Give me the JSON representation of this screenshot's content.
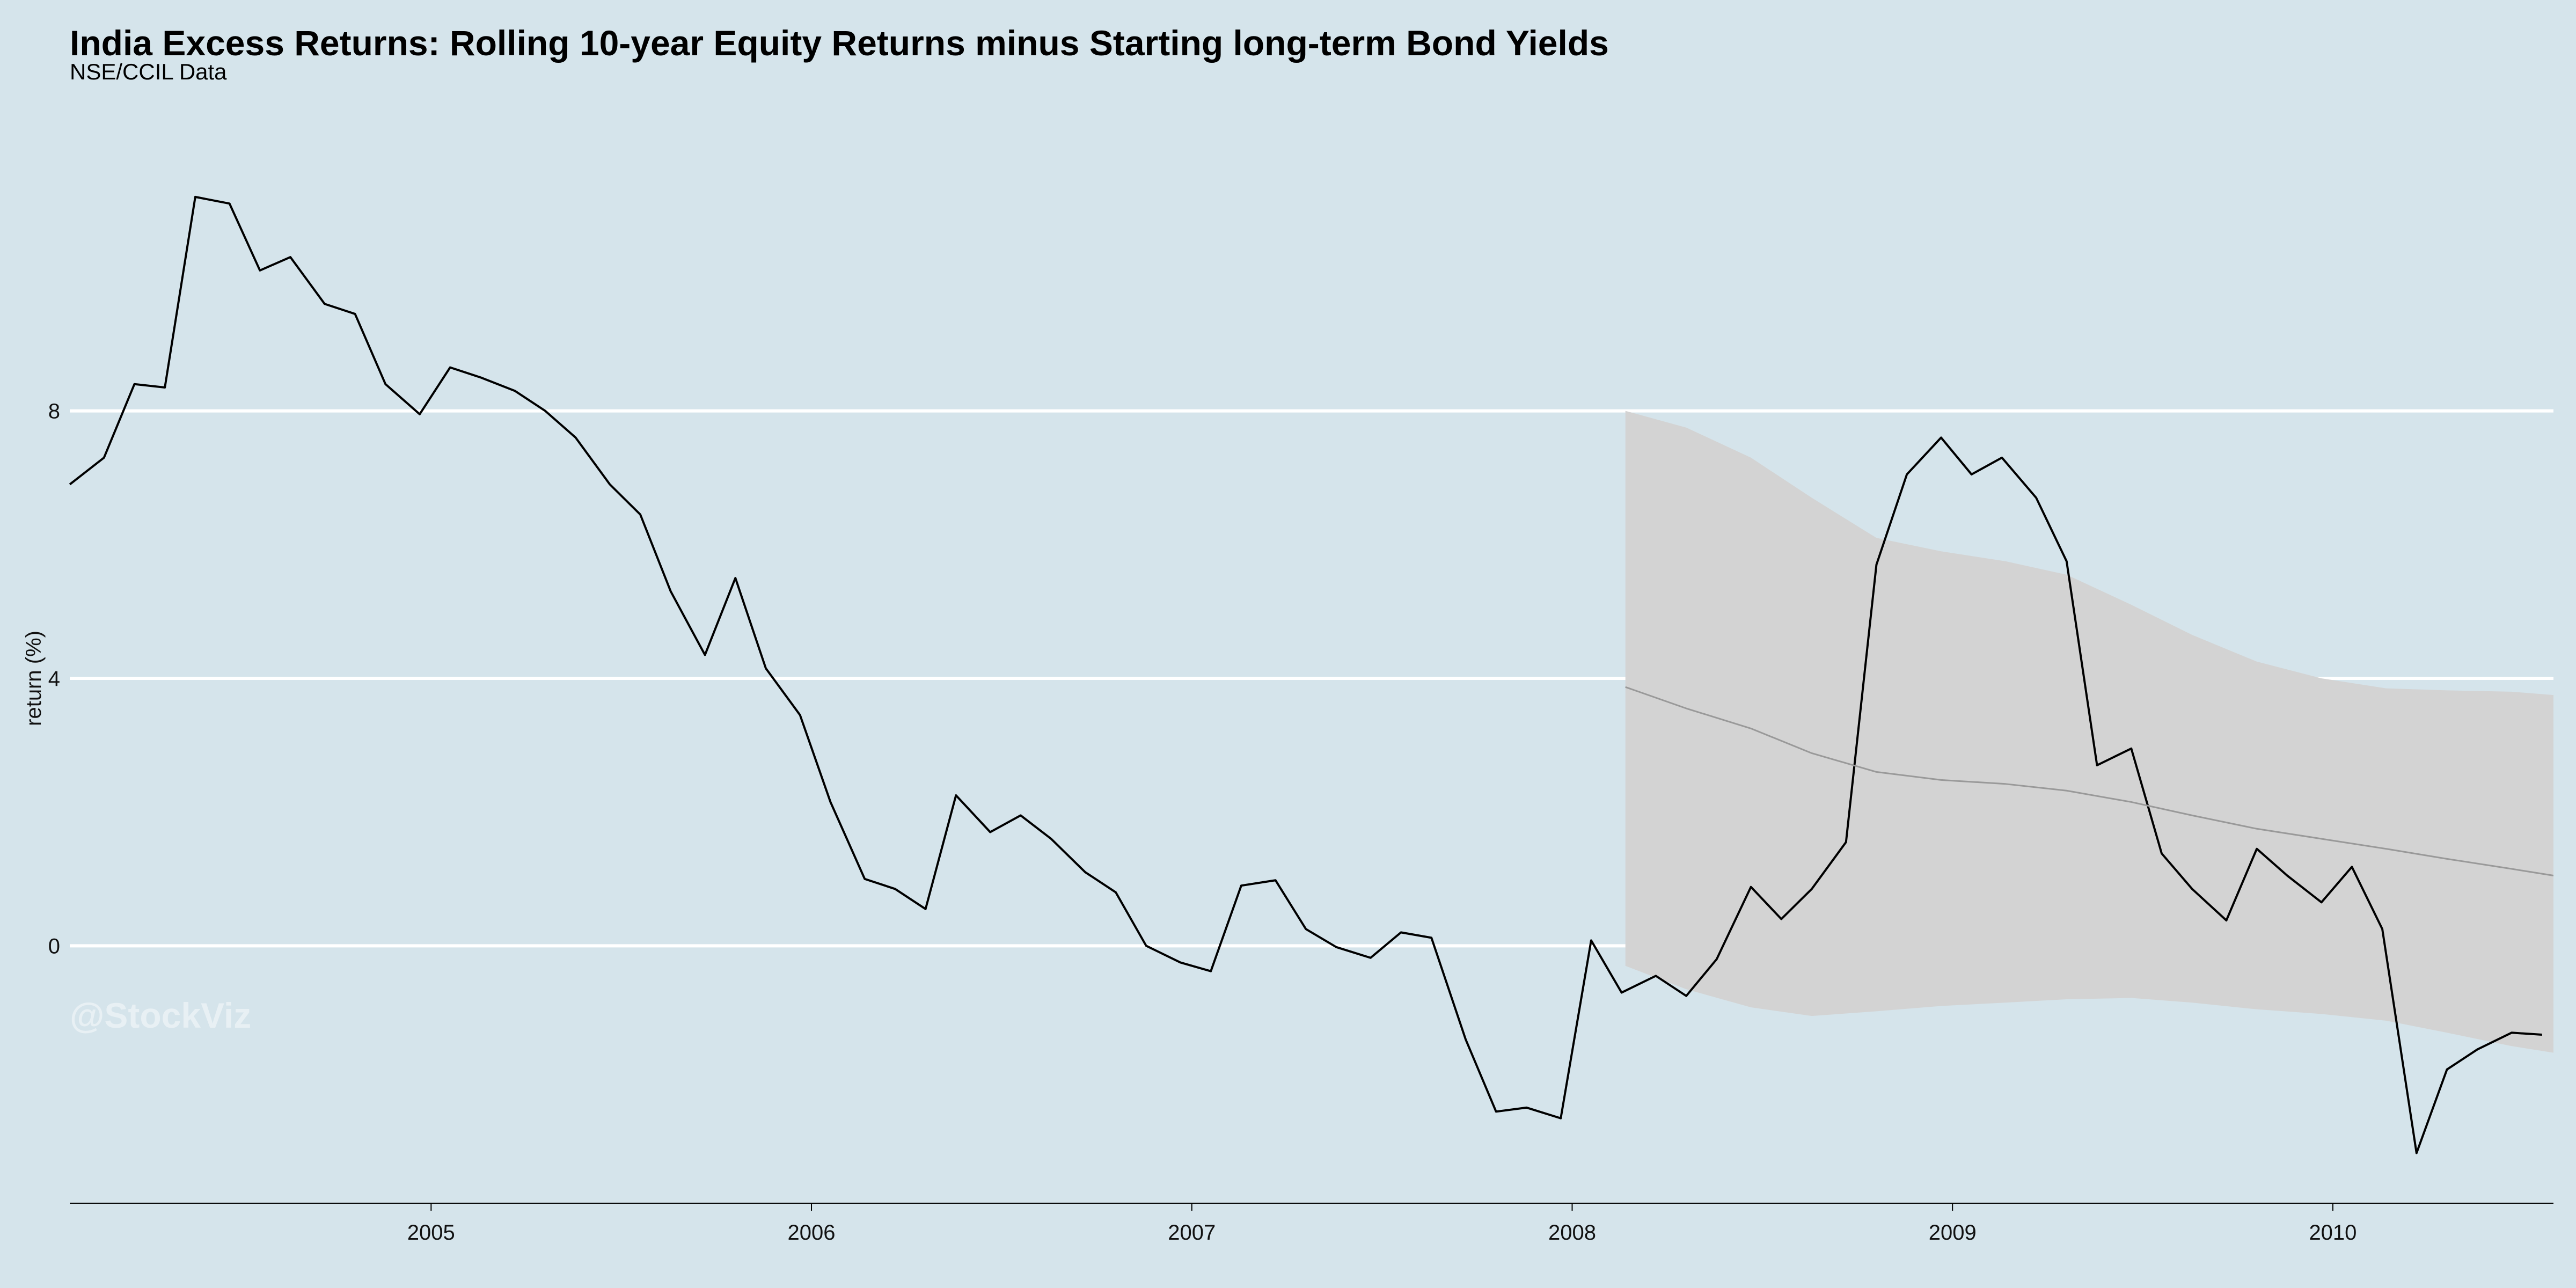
{
  "chart_data": {
    "type": "line",
    "title": "India Excess Returns: Rolling 10-year Equity Returns minus Starting long-term Bond Yields",
    "subtitle": "NSE/CCIL Data",
    "xlabel": "",
    "ylabel": "return (%)",
    "watermark": "@StockViz",
    "xlim": [
      2004.05,
      2010.58
    ],
    "ylim": [
      -3.85,
      12.7
    ],
    "yticks": [
      0,
      4,
      8
    ],
    "xticks": [
      "2005",
      "2006",
      "2007",
      "2008",
      "2009",
      "2010"
    ],
    "grid": "horizontal",
    "series": [
      {
        "kind": "actual",
        "color": "#000000",
        "x": [
          2004.05,
          2004.14,
          2004.22,
          2004.3,
          2004.38,
          2004.47,
          2004.55,
          2004.63,
          2004.72,
          2004.8,
          2004.88,
          2004.97,
          2005.05,
          2005.13,
          2005.22,
          2005.3,
          2005.38,
          2005.47,
          2005.55,
          2005.63,
          2005.72,
          2005.8,
          2005.88,
          2005.97,
          2006.05,
          2006.14,
          2006.22,
          2006.3,
          2006.38,
          2006.47,
          2006.55,
          2006.63,
          2006.72,
          2006.8,
          2006.88,
          2006.97,
          2007.05,
          2007.13,
          2007.22,
          2007.3,
          2007.38,
          2007.47,
          2007.55,
          2007.63,
          2007.72,
          2007.8,
          2007.88,
          2007.97,
          2008.05,
          2008.13,
          2008.22,
          2008.3,
          2008.38,
          2008.47,
          2008.55,
          2008.63,
          2008.72,
          2008.8,
          2008.88,
          2008.97,
          2009.05,
          2009.13,
          2009.22,
          2009.3,
          2009.38,
          2009.47,
          2009.55,
          2009.63,
          2009.72,
          2009.8,
          2009.88,
          2009.97,
          2010.05,
          2010.13,
          2010.22,
          2010.3,
          2010.38,
          2010.47,
          2010.55
        ],
        "y": [
          6.9,
          7.3,
          8.4,
          8.35,
          11.2,
          11.1,
          10.1,
          10.3,
          9.6,
          9.45,
          8.4,
          7.95,
          8.65,
          8.5,
          8.3,
          8.0,
          7.6,
          6.9,
          6.45,
          5.3,
          4.35,
          5.5,
          4.15,
          3.45,
          2.15,
          1.0,
          0.85,
          0.55,
          2.25,
          1.7,
          1.95,
          1.6,
          1.1,
          0.8,
          0.0,
          -0.25,
          -0.38,
          0.9,
          0.98,
          0.25,
          -0.02,
          -0.18,
          0.2,
          0.12,
          -1.4,
          -2.48,
          -2.42,
          -2.58,
          0.08,
          -0.7,
          -0.45,
          -0.75,
          -0.2,
          0.88,
          0.4,
          0.85,
          1.55,
          5.7,
          7.05,
          7.6,
          7.05,
          7.3,
          6.7,
          5.75,
          2.7,
          2.95,
          1.38,
          0.85,
          0.38,
          1.45,
          1.05,
          0.65,
          1.18,
          0.25,
          -3.1,
          -1.85,
          -1.55,
          -1.3,
          -1.33
        ]
      },
      {
        "kind": "forecast_mean",
        "color": "#999999",
        "x": [
          2008.14,
          2008.3,
          2008.47,
          2008.63,
          2008.8,
          2008.97,
          2009.14,
          2009.3,
          2009.47,
          2009.63,
          2009.8,
          2009.97,
          2010.14,
          2010.3,
          2010.47,
          2010.58
        ],
        "y": [
          3.87,
          3.55,
          3.25,
          2.88,
          2.6,
          2.48,
          2.42,
          2.32,
          2.15,
          1.95,
          1.75,
          1.6,
          1.45,
          1.3,
          1.15,
          1.05
        ]
      }
    ],
    "forecast_band": {
      "color": "#d3d3d3",
      "x": [
        2008.14,
        2008.3,
        2008.47,
        2008.63,
        2008.8,
        2008.97,
        2009.14,
        2009.3,
        2009.47,
        2009.63,
        2009.8,
        2009.97,
        2010.14,
        2010.3,
        2010.47,
        2010.58
      ],
      "upper": [
        8.0,
        7.75,
        7.3,
        6.7,
        6.1,
        5.9,
        5.75,
        5.55,
        5.1,
        4.65,
        4.25,
        4.0,
        3.85,
        3.82,
        3.8,
        3.75
      ],
      "lower": [
        -0.3,
        -0.65,
        -0.92,
        -1.05,
        -0.98,
        -0.9,
        -0.85,
        -0.8,
        -0.78,
        -0.85,
        -0.95,
        -1.02,
        -1.12,
        -1.3,
        -1.5,
        -1.6
      ]
    }
  }
}
